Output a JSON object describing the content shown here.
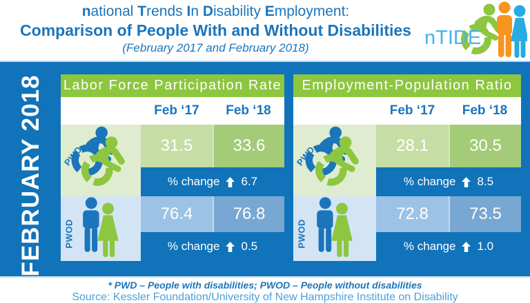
{
  "colors": {
    "blue_main": "#1173b9",
    "blue_text": "#1b75bb",
    "green": "#8dc63f",
    "pale_green": "#dfecd0",
    "lt_green": "#c6dda6",
    "md_green": "#a3cb78",
    "pale_blue": "#d3e5f4",
    "lt_blue": "#9cc2e5",
    "md_blue": "#78a7d3",
    "logo_blue": "#45b5e6",
    "orange": "#f7941e",
    "source_blue": "#4d9fd7"
  },
  "header": {
    "title_parts": [
      {
        "bold": "n",
        "rest": "ational "
      },
      {
        "bold": "T",
        "rest": "rends "
      },
      {
        "bold": "I",
        "rest": "n "
      },
      {
        "bold": "D",
        "rest": "isability "
      },
      {
        "bold": "E",
        "rest": "mployment:"
      }
    ],
    "title_line2": "Comparison of People With and Without Disabilities",
    "title_line3": "(February 2017 and February 2018)",
    "logo_text": "nTIDE"
  },
  "sidebar": {
    "month_label": "FEBRUARY 2018"
  },
  "panels": [
    {
      "title": "Labor Force Participation Rate",
      "col_headers": [
        "Feb ‘17",
        "Feb ‘18"
      ],
      "rows": [
        {
          "group": "PWD",
          "values": [
            "31.5",
            "33.6"
          ],
          "change_label": "% change",
          "change_value": "6.7"
        },
        {
          "group": "PWOD",
          "values": [
            "76.4",
            "76.8"
          ],
          "change_label": "% change",
          "change_value": "0.5"
        }
      ]
    },
    {
      "title": "Employment-Population Ratio",
      "col_headers": [
        "Feb ‘17",
        "Feb ‘18"
      ],
      "rows": [
        {
          "group": "PWD",
          "values": [
            "28.1",
            "30.5"
          ],
          "change_label": "% change",
          "change_value": "8.5"
        },
        {
          "group": "PWOD",
          "values": [
            "72.8",
            "73.5"
          ],
          "change_label": "% change",
          "change_value": "1.0"
        }
      ]
    }
  ],
  "footer": {
    "footnote": "* PWD – People with disabilities;  PWOD – People without disabilities",
    "source": "Source: Kessler Foundation/University of New Hampshire Institute on Disability"
  },
  "chart_data": [
    {
      "type": "table",
      "title": "Labor Force Participation Rate",
      "categories": [
        "Feb '17",
        "Feb '18"
      ],
      "series": [
        {
          "name": "PWD",
          "values": [
            31.5,
            33.6
          ],
          "pct_change": 6.7,
          "direction": "up"
        },
        {
          "name": "PWOD",
          "values": [
            76.4,
            76.8
          ],
          "pct_change": 0.5,
          "direction": "up"
        }
      ]
    },
    {
      "type": "table",
      "title": "Employment-Population Ratio",
      "categories": [
        "Feb '17",
        "Feb '18"
      ],
      "series": [
        {
          "name": "PWD",
          "values": [
            28.1,
            30.5
          ],
          "pct_change": 8.5,
          "direction": "up"
        },
        {
          "name": "PWOD",
          "values": [
            72.8,
            73.5
          ],
          "pct_change": 1.0,
          "direction": "up"
        }
      ]
    }
  ]
}
